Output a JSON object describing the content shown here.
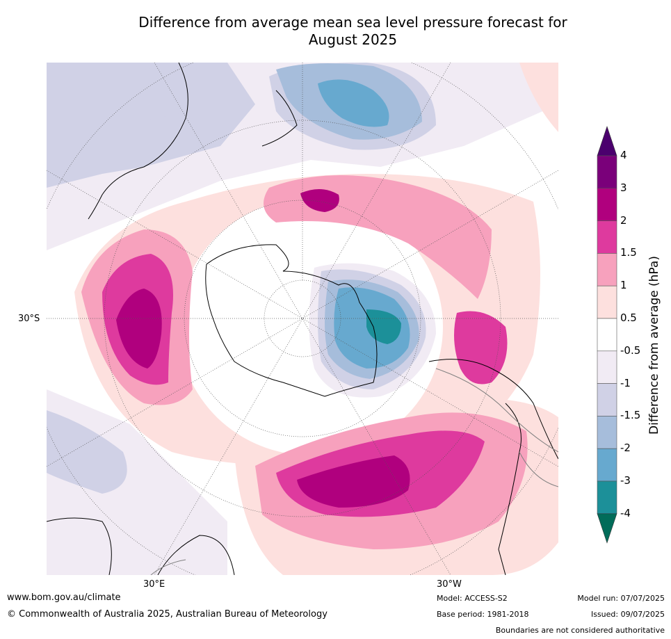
{
  "title_line1": "Difference from average mean sea level pressure forecast for",
  "title_line2": "August 2025",
  "map_labels": {
    "lat": "30°S",
    "lon_e": "30°E",
    "lon_w": "30°W"
  },
  "colorbar": {
    "label": "Difference from average (hPa)",
    "ticks": [
      "4",
      "3",
      "2",
      "1.5",
      "1",
      "0.5",
      "-0.5",
      "-1",
      "-1.5",
      "-2",
      "-3",
      "-4"
    ],
    "colors": [
      "#4b006e",
      "#7a007a",
      "#b0007e",
      "#de3a9e",
      "#f7a1bd",
      "#fde0de",
      "#ffffff",
      "#f1ebf4",
      "#d0d1e6",
      "#a6bddb",
      "#67a9cf",
      "#1c9099",
      "#016c59"
    ]
  },
  "footer": {
    "url": "www.bom.gov.au/climate",
    "copyright": "© Commonwealth of Australia 2025, Australian Bureau of Meteorology",
    "model": "Model: ACCESS-S2",
    "base_period": "Base period: 1981-2018",
    "model_run": "Model run: 07/07/2025",
    "issued": "Issued: 09/07/2025",
    "disclaimer": "Boundaries are not considered authoritative"
  }
}
